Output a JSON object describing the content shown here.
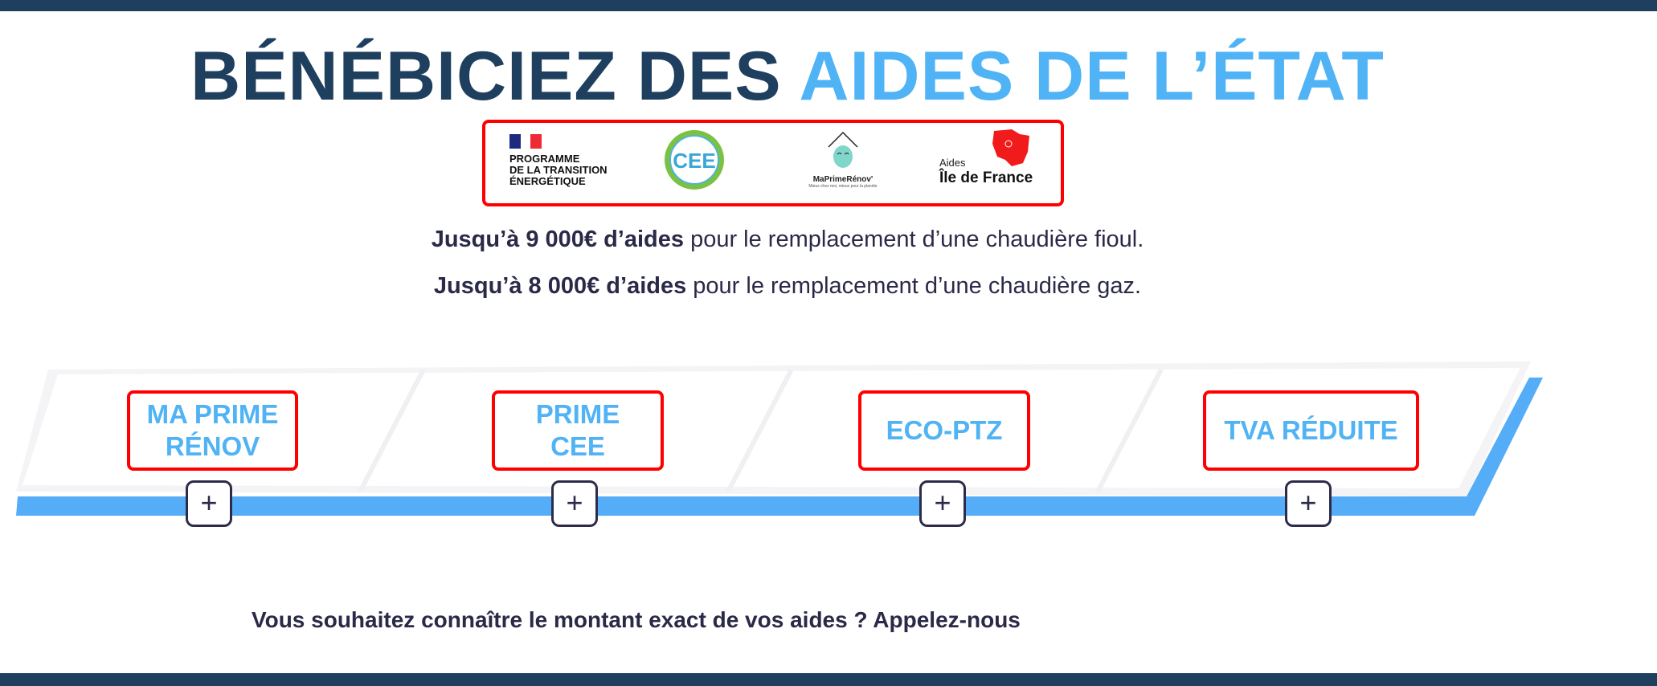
{
  "header": {
    "title_part1": "BÉNÉBICIEZ DES ",
    "title_part2": "AIDES DE L’ÉTAT"
  },
  "logos": {
    "programme": [
      "PROGRAMME",
      "DE LA TRANSITION",
      "ÉNERGÉTIQUE"
    ],
    "cee": "CEE",
    "maprimerenov": "MaPrimeRénov'",
    "maprimerenov_tagline": "Mieux chez moi, mieux pour la planète",
    "idf_small": "Aides",
    "idf_big": "Île de France"
  },
  "intro": [
    {
      "bold": "Jusqu’à 9 000€ d’aides",
      "rest": " pour le remplacement d’une chaudière fioul."
    },
    {
      "bold": "Jusqu’à 8 000€ d’aides",
      "rest": " pour le remplacement d’une chaudière gaz."
    }
  ],
  "aids": [
    {
      "label": "MA PRIME RÉNOV",
      "plus": "+"
    },
    {
      "label": "PRIME CEE",
      "plus": "+"
    },
    {
      "label": "ECO-PTZ",
      "plus": "+"
    },
    {
      "label": "TVA RÉDUITE",
      "plus": "+"
    }
  ],
  "cta": "Vous souhaitez connaître le montant exact de vos aides ? Appelez-nous",
  "colors": {
    "navy": "#1f3f5f",
    "accent": "#4fb3f5",
    "highlight": "#ff0000",
    "band": "#55adf7"
  }
}
